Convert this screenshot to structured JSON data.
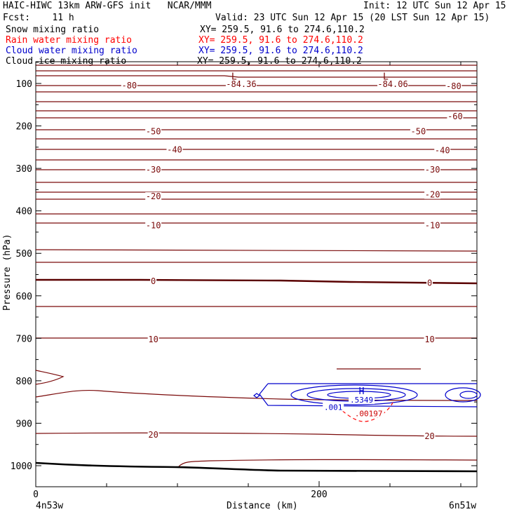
{
  "header": {
    "title_left": "HAIC-HIWC 13km ARW-GFS init   NCAR/MMM",
    "init": "Init: 12 UTC Sun 12 Apr 15",
    "fcst": "Fcst:    11 h",
    "valid": "Valid: 23 UTC Sun 12 Apr 15 (20 LST Sun 12 Apr 15)"
  },
  "fields": [
    {
      "label": "Snow mixing ratio",
      "xy": "XY= 259.5, 91.6 to 274.6,110.2",
      "color": "#000000"
    },
    {
      "label": "Rain water mixing ratio",
      "xy": "XY= 259.5, 91.6 to 274.6,110.2",
      "color": "#ff0000"
    },
    {
      "label": "Cloud water mixing ratio",
      "xy": "XY= 259.5, 91.6 to 274.6,110.2",
      "color": "#0000cc"
    },
    {
      "label": "Cloud ice mixing ratio",
      "xy": "XY= 259.5, 91.6 to 274.6,110.2",
      "color": "#000000"
    }
  ],
  "chart_data": {
    "type": "contour cross-section",
    "ylabel": "Pressure (hPa)",
    "xlabel": "Distance (km)",
    "y_ticks": [
      100,
      200,
      300,
      400,
      500,
      600,
      700,
      800,
      900,
      1000
    ],
    "x_ticks": [
      0,
      200
    ],
    "ylim": [
      50,
      1050
    ],
    "xlim": [
      0,
      310
    ],
    "x_start_label": "4n53w",
    "x_end_label": "6n51w",
    "temperature_contour_labels": [
      {
        "text": "-80",
        "x": 66,
        "p": 105
      },
      {
        "text": "-84.36",
        "x": 145,
        "p": 102
      },
      {
        "text": "-84.06",
        "x": 252,
        "p": 102
      },
      {
        "text": "-80",
        "x": 295,
        "p": 107
      },
      {
        "text": "-60",
        "x": 296,
        "p": 178
      },
      {
        "text": "-50",
        "x": 83,
        "p": 213
      },
      {
        "text": "-50",
        "x": 270,
        "p": 213
      },
      {
        "text": "-40",
        "x": 98,
        "p": 256
      },
      {
        "text": "-40",
        "x": 287,
        "p": 258
      },
      {
        "text": "-30",
        "x": 83,
        "p": 303
      },
      {
        "text": "-30",
        "x": 280,
        "p": 303
      },
      {
        "text": "-20",
        "x": 83,
        "p": 366
      },
      {
        "text": "-20",
        "x": 280,
        "p": 362
      },
      {
        "text": "-10",
        "x": 83,
        "p": 434
      },
      {
        "text": "-10",
        "x": 280,
        "p": 434
      },
      {
        "text": "0",
        "x": 83,
        "p": 566
      },
      {
        "text": "0",
        "x": 278,
        "p": 570
      },
      {
        "text": "10",
        "x": 83,
        "p": 703
      },
      {
        "text": "10",
        "x": 278,
        "p": 703
      },
      {
        "text": "20",
        "x": 83,
        "p": 927
      },
      {
        "text": "20",
        "x": 278,
        "p": 931
      }
    ],
    "extrema": [
      {
        "text": "L",
        "x": 140,
        "p": 83
      },
      {
        "text": "L",
        "x": 247,
        "p": 83
      },
      {
        "text": "H",
        "x": 230,
        "p": 823
      }
    ],
    "cloud_water_labels": [
      {
        "text": ".5349",
        "x": 230,
        "p": 845
      },
      {
        "text": ".001",
        "x": 210,
        "p": 862
      }
    ],
    "rain_water_labels": [
      {
        "text": ".00197",
        "x": 235,
        "p": 877
      }
    ]
  }
}
